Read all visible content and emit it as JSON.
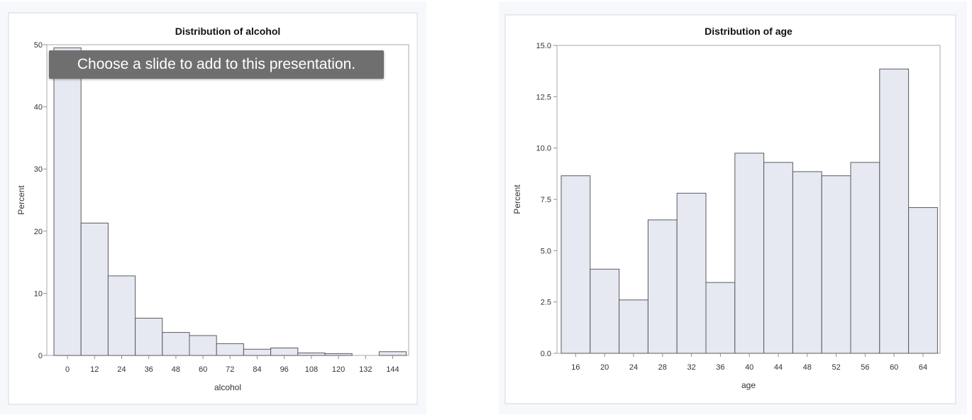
{
  "tooltip": {
    "text": "Choose a slide to add to this presentation."
  },
  "colors": {
    "bar_fill": "#e6e9f1",
    "bar_stroke": "#5a5b60",
    "tooltip_bg": "#6f6f6f",
    "slide_bg": "#f7f8fc"
  },
  "chart_data": [
    {
      "type": "bar",
      "title": "Distribution of alcohol",
      "xlabel": "alcohol",
      "ylabel": "Percent",
      "ylim": [
        0,
        50
      ],
      "yticks": [
        "0",
        "10",
        "20",
        "30",
        "40",
        "50"
      ],
      "categories": [
        "0",
        "12",
        "24",
        "36",
        "48",
        "60",
        "72",
        "84",
        "96",
        "108",
        "120",
        "132",
        "144"
      ],
      "values": [
        49.5,
        21.3,
        12.8,
        6.0,
        3.7,
        3.2,
        1.9,
        1.0,
        1.2,
        0.4,
        0.3,
        0.0,
        0.6
      ],
      "grid": false
    },
    {
      "type": "bar",
      "title": "Distribution of age",
      "xlabel": "age",
      "ylabel": "Percent",
      "ylim": [
        0,
        15
      ],
      "yticks": [
        "0.0",
        "2.5",
        "5.0",
        "7.5",
        "10.0",
        "12.5",
        "15.0"
      ],
      "categories": [
        "16",
        "20",
        "24",
        "28",
        "32",
        "36",
        "40",
        "44",
        "48",
        "52",
        "56",
        "60",
        "64"
      ],
      "values": [
        8.65,
        4.1,
        2.6,
        6.5,
        7.8,
        3.45,
        9.75,
        9.3,
        8.85,
        8.65,
        9.3,
        13.85,
        7.1
      ],
      "grid": false
    }
  ]
}
